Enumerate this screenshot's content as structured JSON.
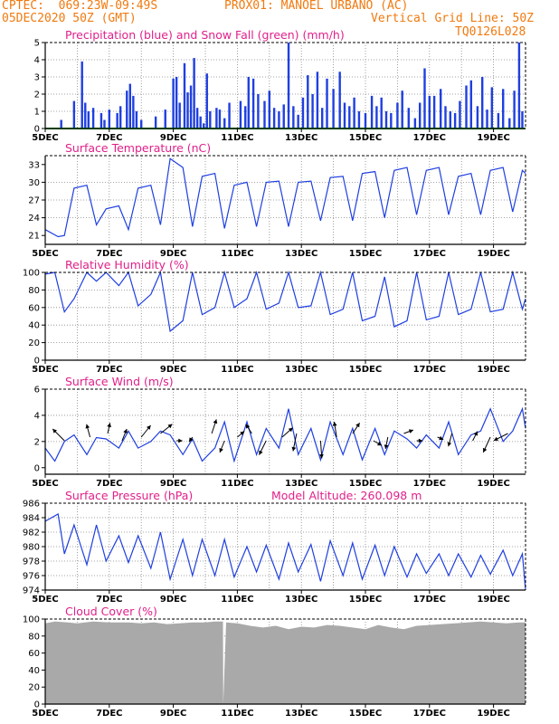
{
  "header": {
    "left_line1": "CPTEC:  069:23W-09:49S",
    "center_line1": "PROX01: MANOEL URBANO (AC)",
    "left_line2": "05DEC2020 50Z (GMT)",
    "right_line2": "Vertical Grid Line: 50Z",
    "right_line3": "TQ0126L028"
  },
  "colors": {
    "header": "#f07a10",
    "title": "#e0208a",
    "series": "#1f3fe0",
    "snow": "#00a000",
    "cloud": "#a9a9a9"
  },
  "x_tick_labels": [
    "5DEC",
    "7DEC",
    "9DEC",
    "11DEC",
    "13DEC",
    "15DEC",
    "17DEC",
    "19DEC"
  ],
  "chart_data": [
    {
      "id": "precip",
      "type": "bar",
      "title": "Precipitation (blue) and Snow Fall (green) (mm/h)",
      "ylim": [
        0,
        5
      ],
      "yticks": [
        0,
        1,
        2,
        3,
        4,
        5
      ],
      "x_range_days": [
        5,
        20
      ],
      "series": [
        {
          "name": "Precipitation",
          "color": "#1f3fe0",
          "x": [
            5.5,
            5.9,
            6.15,
            6.25,
            6.35,
            6.5,
            6.75,
            6.85,
            7.0,
            7.25,
            7.35,
            7.55,
            7.65,
            7.75,
            7.85,
            8.0,
            8.45,
            8.75,
            9.0,
            9.1,
            9.2,
            9.35,
            9.45,
            9.55,
            9.65,
            9.75,
            9.85,
            9.95,
            10.05,
            10.15,
            10.35,
            10.45,
            10.6,
            10.75,
            11.1,
            11.25,
            11.35,
            11.5,
            11.65,
            11.85,
            12.0,
            12.15,
            12.3,
            12.45,
            12.6,
            12.75,
            12.9,
            13.05,
            13.2,
            13.35,
            13.5,
            13.65,
            13.8,
            14.0,
            14.2,
            14.35,
            14.5,
            14.65,
            14.8,
            15.0,
            15.2,
            15.35,
            15.5,
            15.65,
            15.8,
            16.0,
            16.15,
            16.35,
            16.55,
            16.7,
            16.85,
            17.0,
            17.15,
            17.35,
            17.5,
            17.65,
            17.8,
            17.95,
            18.15,
            18.3,
            18.5,
            18.65,
            18.8,
            18.95,
            19.15,
            19.3,
            19.5,
            19.65,
            19.8,
            19.9
          ],
          "values": [
            0.5,
            1.6,
            3.9,
            1.5,
            1.0,
            1.2,
            0.9,
            0.5,
            1.1,
            0.9,
            1.3,
            2.2,
            2.6,
            1.9,
            1.0,
            0.5,
            0.7,
            1.1,
            2.9,
            3.0,
            1.5,
            3.8,
            2.1,
            2.5,
            4.1,
            1.2,
            0.7,
            0.3,
            3.2,
            1.0,
            1.2,
            1.1,
            0.6,
            1.5,
            1.6,
            1.3,
            3.0,
            2.9,
            2.0,
            1.6,
            2.2,
            1.2,
            1.0,
            1.4,
            5.0,
            1.3,
            0.8,
            1.8,
            3.1,
            2.0,
            3.3,
            1.2,
            2.9,
            2.3,
            3.3,
            1.5,
            1.3,
            1.8,
            1.0,
            0.9,
            1.9,
            1.3,
            1.8,
            1.0,
            0.9,
            1.5,
            2.2,
            1.2,
            0.6,
            1.5,
            3.5,
            1.9,
            1.9,
            2.3,
            1.3,
            1.0,
            0.9,
            1.6,
            2.5,
            2.8,
            1.3,
            3.0,
            1.1,
            2.4,
            0.9,
            2.3,
            0.6,
            2.2,
            5.0,
            1.0
          ]
        },
        {
          "name": "Snow Fall",
          "color": "#00a000",
          "x": [
            5,
            20
          ],
          "values": [
            0,
            0
          ]
        }
      ]
    },
    {
      "id": "temperature",
      "type": "line",
      "title": "Surface Temperature (nC)",
      "ylim": [
        19.5,
        34.5
      ],
      "yticks": [
        21,
        24,
        27,
        30,
        33
      ],
      "series": [
        {
          "name": "Temperature",
          "color": "#1f3fe0",
          "x": [
            5.0,
            5.4,
            5.6,
            5.9,
            6.3,
            6.6,
            6.9,
            7.3,
            7.6,
            7.9,
            8.3,
            8.6,
            8.9,
            9.3,
            9.6,
            9.9,
            10.3,
            10.6,
            10.9,
            11.3,
            11.6,
            11.9,
            12.3,
            12.6,
            12.9,
            13.3,
            13.6,
            13.9,
            14.3,
            14.6,
            14.9,
            15.3,
            15.6,
            15.9,
            16.3,
            16.6,
            16.9,
            17.3,
            17.6,
            17.9,
            18.3,
            18.6,
            18.9,
            19.3,
            19.6,
            19.9,
            20.0
          ],
          "values": [
            22.0,
            20.8,
            21.0,
            29.0,
            29.5,
            22.8,
            25.5,
            26.0,
            22.0,
            29.0,
            29.5,
            22.8,
            34.0,
            32.5,
            22.5,
            31.0,
            31.5,
            22.2,
            29.5,
            30.0,
            22.5,
            30.0,
            30.2,
            22.5,
            30.0,
            30.2,
            23.5,
            30.8,
            31.0,
            23.5,
            31.5,
            31.8,
            24.0,
            32.0,
            32.5,
            24.5,
            32.0,
            32.5,
            24.5,
            31.0,
            31.5,
            24.5,
            32.0,
            32.5,
            25.0,
            32.0,
            31.5
          ]
        }
      ]
    },
    {
      "id": "humidity",
      "type": "line",
      "title": "Relative Humidity (%)",
      "ylim": [
        0,
        100
      ],
      "yticks": [
        0,
        20,
        40,
        60,
        80,
        100
      ],
      "series": [
        {
          "name": "Relative Humidity",
          "color": "#1f3fe0",
          "x": [
            5.0,
            5.3,
            5.6,
            5.9,
            6.3,
            6.6,
            6.9,
            7.3,
            7.6,
            7.9,
            8.3,
            8.6,
            8.9,
            9.3,
            9.6,
            9.9,
            10.3,
            10.6,
            10.9,
            11.3,
            11.6,
            11.9,
            12.3,
            12.6,
            12.9,
            13.3,
            13.6,
            13.9,
            14.3,
            14.6,
            14.9,
            15.3,
            15.6,
            15.9,
            16.3,
            16.6,
            16.9,
            17.3,
            17.6,
            17.9,
            18.3,
            18.6,
            18.9,
            19.3,
            19.6,
            19.9,
            20.0
          ],
          "values": [
            98,
            100,
            55,
            70,
            100,
            90,
            100,
            85,
            100,
            62,
            75,
            100,
            33,
            45,
            100,
            52,
            60,
            100,
            60,
            70,
            100,
            58,
            65,
            100,
            60,
            62,
            100,
            52,
            58,
            100,
            45,
            50,
            95,
            38,
            45,
            100,
            46,
            50,
            100,
            52,
            58,
            100,
            55,
            58,
            100,
            58,
            70
          ]
        }
      ]
    },
    {
      "id": "wind",
      "type": "line",
      "title": "Surface Wind (m/s)",
      "ylim": [
        -0.5,
        6
      ],
      "yticks": [
        0,
        2,
        4,
        6
      ],
      "series": [
        {
          "name": "Wind Speed",
          "color": "#1f3fe0",
          "x": [
            5.0,
            5.3,
            5.6,
            5.9,
            6.3,
            6.6,
            6.9,
            7.3,
            7.6,
            7.9,
            8.3,
            8.6,
            8.9,
            9.3,
            9.6,
            9.9,
            10.3,
            10.6,
            10.9,
            11.3,
            11.6,
            11.9,
            12.3,
            12.6,
            12.9,
            13.3,
            13.6,
            13.9,
            14.3,
            14.6,
            14.9,
            15.3,
            15.6,
            15.9,
            16.3,
            16.6,
            16.9,
            17.3,
            17.6,
            17.9,
            18.3,
            18.6,
            18.9,
            19.3,
            19.6,
            19.9,
            20.0
          ],
          "values": [
            1.5,
            0.5,
            2.0,
            2.5,
            1.0,
            2.3,
            2.2,
            1.5,
            2.8,
            1.5,
            2.0,
            2.8,
            2.5,
            1.0,
            2.2,
            0.5,
            1.5,
            3.5,
            0.5,
            3.5,
            1.0,
            3.0,
            1.5,
            4.5,
            1.0,
            3.0,
            0.6,
            3.5,
            1.0,
            3.0,
            0.6,
            3.0,
            1.0,
            2.8,
            2.2,
            1.5,
            2.5,
            1.5,
            3.5,
            1.0,
            2.5,
            2.8,
            4.5,
            2.0,
            2.8,
            4.5,
            3.0
          ]
        },
        {
          "name": "Wind Vectors",
          "color": "#000000",
          "x": [
            5.6,
            6.4,
            6.95,
            7.4,
            8.0,
            8.6,
            9.1,
            9.6,
            10.2,
            10.6,
            11.0,
            11.45,
            11.9,
            12.4,
            12.85,
            13.6,
            14.1,
            14.6,
            15.25,
            15.7,
            16.2,
            16.6,
            17.25,
            17.7,
            18.35,
            18.9,
            19.45
          ],
          "u": [
            -1.0,
            -0.3,
            0.2,
            0.4,
            0.8,
            1.0,
            0.5,
            -0.3,
            0.4,
            -0.4,
            0.6,
            -0.5,
            -0.6,
            0.9,
            -0.3,
            0.1,
            -0.2,
            0.6,
            0.7,
            -0.2,
            0.8,
            0.5,
            0.5,
            -0.3,
            0.4,
            -0.6,
            -1.2
          ],
          "v": [
            1.0,
            1.1,
            0.9,
            1.0,
            1.0,
            0.8,
            0.0,
            -0.4,
            1.2,
            -1.0,
            0.5,
            0.8,
            -1.2,
            0.8,
            -1.5,
            -1.5,
            1.3,
            0.9,
            -0.4,
            -1.0,
            0.3,
            0.0,
            -0.2,
            -1.1,
            0.8,
            -1.3,
            -0.6
          ]
        }
      ]
    },
    {
      "id": "pressure",
      "type": "line",
      "title": "Surface Pressure (hPa)",
      "annotation": "Model Altitude: 260.098 m",
      "ylim": [
        974,
        986
      ],
      "yticks": [
        974,
        976,
        978,
        980,
        982,
        984,
        986
      ],
      "series": [
        {
          "name": "Surface Pressure",
          "color": "#1f3fe0",
          "x": [
            5.0,
            5.4,
            5.6,
            5.9,
            6.3,
            6.6,
            6.9,
            7.3,
            7.6,
            7.9,
            8.3,
            8.6,
            8.9,
            9.3,
            9.6,
            9.9,
            10.3,
            10.6,
            10.9,
            11.3,
            11.6,
            11.9,
            12.3,
            12.6,
            12.9,
            13.3,
            13.6,
            13.9,
            14.3,
            14.6,
            14.9,
            15.3,
            15.6,
            15.9,
            16.3,
            16.6,
            16.9,
            17.3,
            17.6,
            17.9,
            18.3,
            18.6,
            18.9,
            19.3,
            19.6,
            19.9,
            20.0
          ],
          "values": [
            983.5,
            984.5,
            979.0,
            983.0,
            977.5,
            983.0,
            978.0,
            981.5,
            977.8,
            981.5,
            977.0,
            982.0,
            975.5,
            981.0,
            976.0,
            981.0,
            976.0,
            981.0,
            975.8,
            980.0,
            976.5,
            980.2,
            975.5,
            980.5,
            976.5,
            980.3,
            975.2,
            980.8,
            976.0,
            980.5,
            975.5,
            980.2,
            976.0,
            980.0,
            975.8,
            979.0,
            976.3,
            979.0,
            976.0,
            979.0,
            975.8,
            978.8,
            976.2,
            979.5,
            976.0,
            979.0,
            974.0
          ]
        }
      ]
    },
    {
      "id": "cloud",
      "type": "area",
      "title": "Cloud Cover (%)",
      "ylim": [
        0,
        100
      ],
      "yticks": [
        0,
        20,
        40,
        60,
        80,
        100
      ],
      "series": [
        {
          "name": "Cloud Cover",
          "color": "#a9a9a9",
          "x": [
            5.0,
            5.3,
            5.7,
            6.0,
            6.5,
            7.0,
            7.6,
            8.0,
            8.4,
            8.8,
            9.2,
            9.6,
            10.0,
            10.3,
            10.55,
            10.56,
            10.65,
            11.0,
            11.4,
            11.8,
            12.2,
            12.6,
            13.0,
            13.4,
            13.8,
            14.2,
            14.6,
            15.0,
            15.4,
            15.8,
            16.2,
            16.6,
            17.0,
            17.4,
            17.8,
            18.2,
            18.6,
            19.0,
            19.4,
            19.8,
            20.0
          ],
          "values": [
            95,
            97,
            96,
            95,
            97,
            96,
            96,
            95,
            96,
            94,
            95,
            96,
            96,
            97,
            97,
            0,
            96,
            95,
            92,
            90,
            92,
            88,
            91,
            90,
            93,
            92,
            90,
            88,
            93,
            90,
            88,
            92,
            93,
            94,
            95,
            96,
            97,
            96,
            95,
            96,
            96
          ]
        }
      ]
    }
  ]
}
